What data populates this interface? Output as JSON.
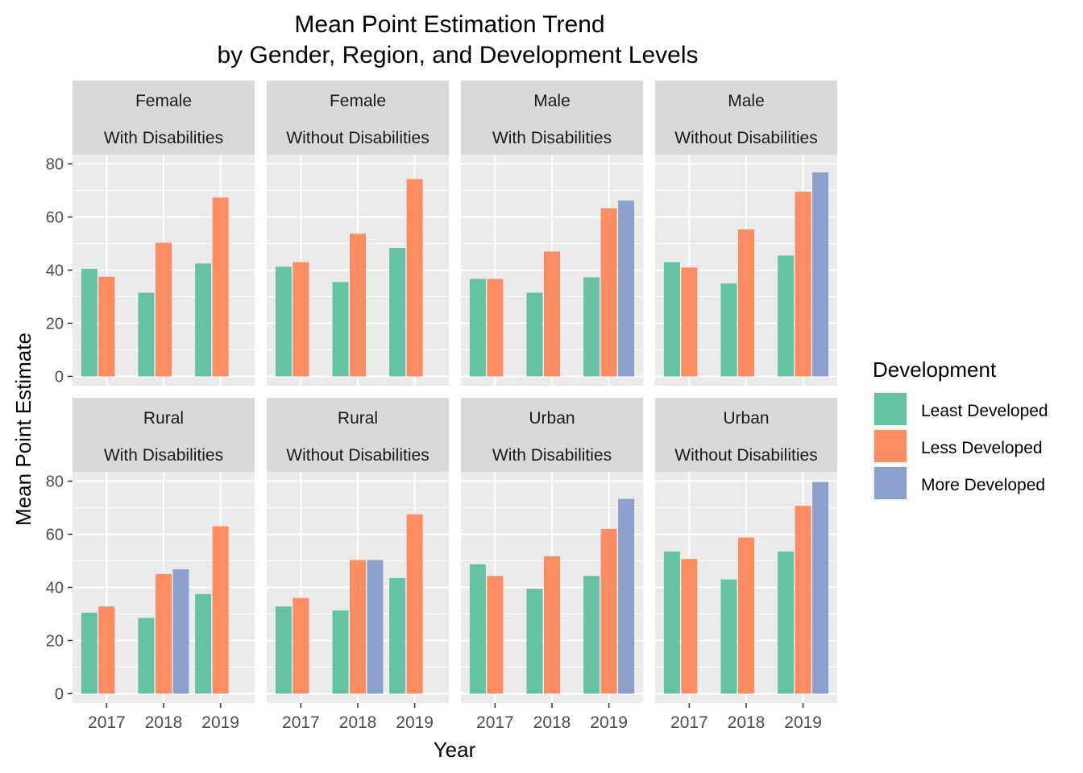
{
  "chart_data": {
    "type": "bar",
    "title_line1": "Mean Point Estimation Trend",
    "title_line2": "by Gender, Region, and Development Levels",
    "xlabel": "Year",
    "ylabel": "Mean Point Estimate",
    "ylim": [
      -3.5,
      83.5
    ],
    "y_ticks": [
      "0",
      "20",
      "40",
      "60",
      "80"
    ],
    "x_ticks": [
      "2017",
      "2018",
      "2019"
    ],
    "grid": true,
    "legend_position": "right",
    "legend": {
      "title": "Development",
      "entries": [
        "Least Developed",
        "Less Developed",
        "More Developed"
      ]
    },
    "colors": {
      "Least Developed": "#66c2a5",
      "Less Developed": "#fc8d62",
      "More Developed": "#8da0cb"
    },
    "panels": [
      {
        "strip": [
          "Female",
          "With Disabilities"
        ],
        "data": {
          "2017": [
            40.5,
            37.5,
            null
          ],
          "2018": [
            31.5,
            50.3,
            null
          ],
          "2019": [
            42.5,
            67.3,
            null
          ]
        }
      },
      {
        "strip": [
          "Female",
          "Without Disabilities"
        ],
        "data": {
          "2017": [
            41.3,
            43.0,
            null
          ],
          "2018": [
            35.5,
            53.7,
            null
          ],
          "2019": [
            48.3,
            74.3,
            null
          ]
        }
      },
      {
        "strip": [
          "Male",
          "With Disabilities"
        ],
        "data": {
          "2017": [
            36.7,
            36.7,
            null
          ],
          "2018": [
            31.5,
            47.0,
            null
          ],
          "2019": [
            37.3,
            63.3,
            66.2
          ]
        }
      },
      {
        "strip": [
          "Male",
          "Without Disabilities"
        ],
        "data": {
          "2017": [
            43.0,
            41.0,
            null
          ],
          "2018": [
            35.0,
            55.3,
            null
          ],
          "2019": [
            45.5,
            69.5,
            76.8
          ]
        }
      },
      {
        "strip": [
          "Rural",
          "With Disabilities"
        ],
        "data": {
          "2017": [
            30.5,
            32.8,
            null
          ],
          "2018": [
            28.5,
            45.0,
            46.8
          ],
          "2019": [
            37.5,
            63.0,
            null
          ]
        }
      },
      {
        "strip": [
          "Rural",
          "Without Disabilities"
        ],
        "data": {
          "2017": [
            32.8,
            36.0,
            null
          ],
          "2018": [
            31.3,
            50.3,
            50.3
          ],
          "2019": [
            43.5,
            67.5,
            null
          ]
        }
      },
      {
        "strip": [
          "Urban",
          "With Disabilities"
        ],
        "data": {
          "2017": [
            48.7,
            44.3,
            null
          ],
          "2018": [
            39.5,
            51.7,
            null
          ],
          "2019": [
            44.3,
            62.0,
            73.3
          ]
        }
      },
      {
        "strip": [
          "Urban",
          "Without Disabilities"
        ],
        "data": {
          "2017": [
            53.5,
            50.7,
            null
          ],
          "2018": [
            43.0,
            58.8,
            null
          ],
          "2019": [
            53.5,
            70.7,
            79.7
          ]
        }
      }
    ]
  }
}
